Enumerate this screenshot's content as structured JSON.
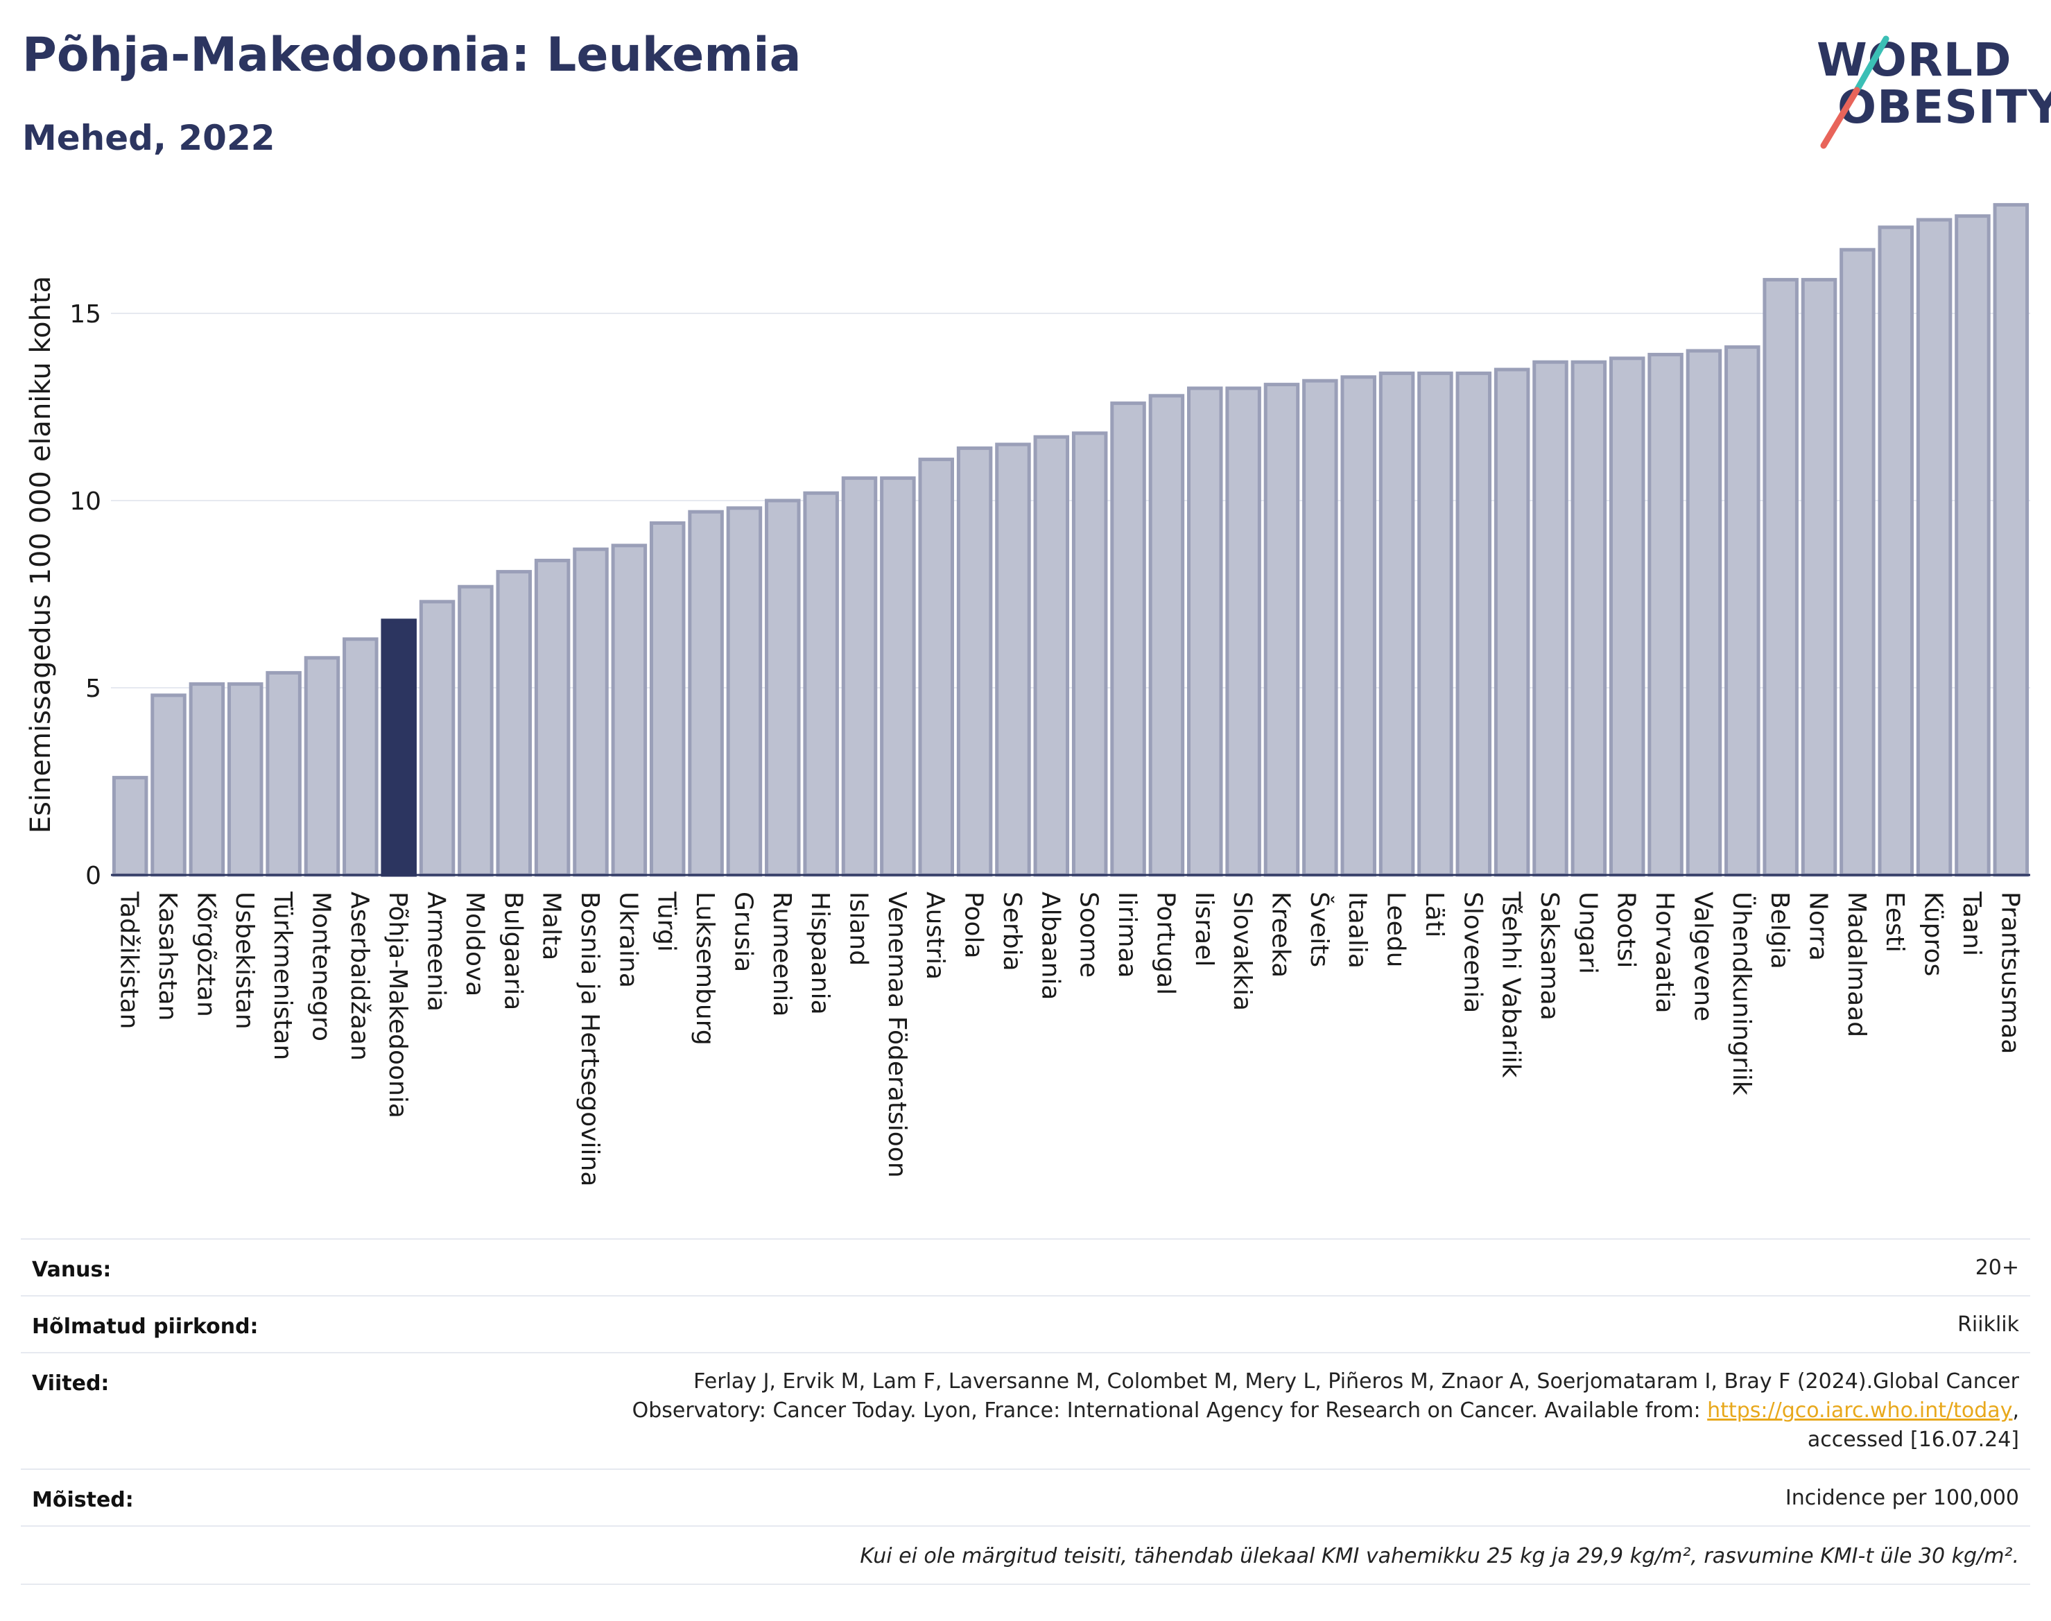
{
  "header": {
    "title": "Põhja-Makedoonia: Leukemia",
    "subtitle": "Mehed, 2022",
    "logo_line1": "WORLD",
    "logo_line2": "OBESITY"
  },
  "colors": {
    "bar": "#bdc1d1",
    "bar_stroke": "#9a9fb8",
    "highlight": "#2c3560",
    "text_dark": "#2c3560",
    "grid": "#e6e9f0",
    "logo_slash_top": "#3bbfb5",
    "logo_slash_bottom": "#e8645a"
  },
  "chart_data": {
    "type": "bar",
    "ylabel": "Esinemissagedus 100 000 elaniku kohta",
    "xlabel": "",
    "ylim": [
      0,
      18
    ],
    "yticks": [
      0,
      5,
      10,
      15
    ],
    "highlight": "Põhja-Makedoonia",
    "categories": [
      "Tadžikistan",
      "Kasahstan",
      "Kõrgõztan",
      "Usbekistan",
      "Türkmenistan",
      "Montenegro",
      "Aserbaidžaan",
      "Põhja-Makedoonia",
      "Armeenia",
      "Moldova",
      "Bulgaaria",
      "Malta",
      "Bosnia ja Hertsegoviina",
      "Ukraina",
      "Türgi",
      "Luksemburg",
      "Grusia",
      "Rumeenia",
      "Hispaania",
      "Island",
      "Venemaa Föderatsioon",
      "Austria",
      "Poola",
      "Serbia",
      "Albaania",
      "Soome",
      "Iirimaa",
      "Portugal",
      "Iisrael",
      "Slovakkia",
      "Kreeka",
      "Šveits",
      "Itaalia",
      "Leedu",
      "Läti",
      "Sloveenia",
      "Tšehhi Vabariik",
      "Saksamaa",
      "Ungari",
      "Rootsi",
      "Horvaatia",
      "Valgevene",
      "Ühendkuningriik",
      "Belgia",
      "Norra",
      "Madalmaad",
      "Eesti",
      "Küpros",
      "Taani",
      "Prantsusmaa"
    ],
    "values": [
      2.6,
      4.8,
      5.1,
      5.1,
      5.4,
      5.8,
      6.3,
      6.8,
      7.3,
      7.7,
      8.1,
      8.4,
      8.7,
      8.8,
      9.4,
      9.7,
      9.8,
      10.0,
      10.2,
      10.6,
      10.6,
      11.1,
      11.4,
      11.5,
      11.7,
      11.8,
      12.6,
      12.8,
      13.0,
      13.0,
      13.1,
      13.2,
      13.3,
      13.4,
      13.4,
      13.4,
      13.5,
      13.7,
      13.7,
      13.8,
      13.9,
      14.0,
      14.1,
      15.9,
      15.9,
      16.7,
      17.3,
      17.5,
      17.6,
      17.9
    ]
  },
  "info": {
    "age_label": "Vanus:",
    "age_value": "20+",
    "region_label": "Hõlmatud piirkond:",
    "region_value": "Riiklik",
    "refs_label": "Viited:",
    "refs_line1": "Ferlay J, Ervik M, Lam F, Laversanne M, Colombet M, Mery L, Piñeros M, Znaor A, Soerjomataram I, Bray F (2024).Global Cancer",
    "refs_line2_pre": "Observatory: Cancer Today. Lyon, France: International Agency for Research on Cancer. Available from: ",
    "refs_link": "https://gco.iarc.who.int/today",
    "refs_line2_post": ",",
    "refs_line3": "accessed [16.07.24]",
    "defs_label": "Mõisted:",
    "defs_value": "Incidence per 100,000",
    "note": "Kui ei ole märgitud teisiti, tähendab ülekaal KMI vahemikku 25 kg ja 29,9 kg/m², rasvumine KMI-t üle 30 kg/m²."
  }
}
